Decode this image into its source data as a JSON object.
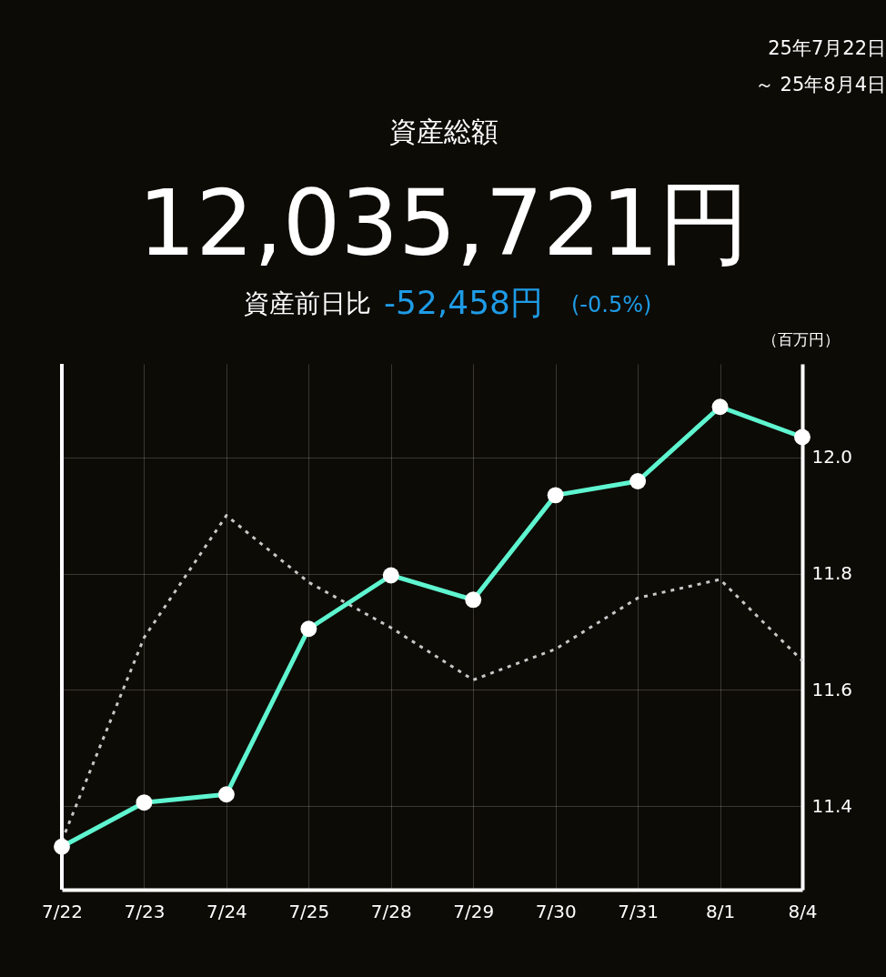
{
  "chart_data": {
    "type": "line",
    "title": "資産総額",
    "subtitle": "12,035,721円",
    "ylabel": "（百万円）",
    "annotations": [
      "25年7月22日",
      "～ 25年8月4日",
      "資産前日比",
      "-52,458円",
      "(-0.5%)"
    ],
    "categories": [
      "7/22",
      "7/23",
      "7/24",
      "7/25",
      "7/28",
      "7/29",
      "7/30",
      "7/31",
      "8/1",
      "8/4"
    ],
    "series": [
      {
        "color": "#c8c8c8",
        "line_style": "dotted",
        "marker": "none",
        "values": [
          11.34,
          11.69,
          11.9,
          11.785,
          11.707,
          11.617,
          11.67,
          11.758,
          11.79,
          11.65
        ]
      },
      {
        "color": "#5ef5d0",
        "line_style": "solid",
        "marker": "circle",
        "values": [
          11.33,
          11.406,
          11.42,
          11.705,
          11.797,
          11.755,
          11.935,
          11.959,
          12.087,
          12.035
        ]
      }
    ],
    "ylim": [
      11.256,
      12.161
    ],
    "yticks": [
      11.4,
      11.6,
      11.8,
      {
        "value": 12.0,
        "label": "12.0"
      }
    ],
    "grid": true
  }
}
